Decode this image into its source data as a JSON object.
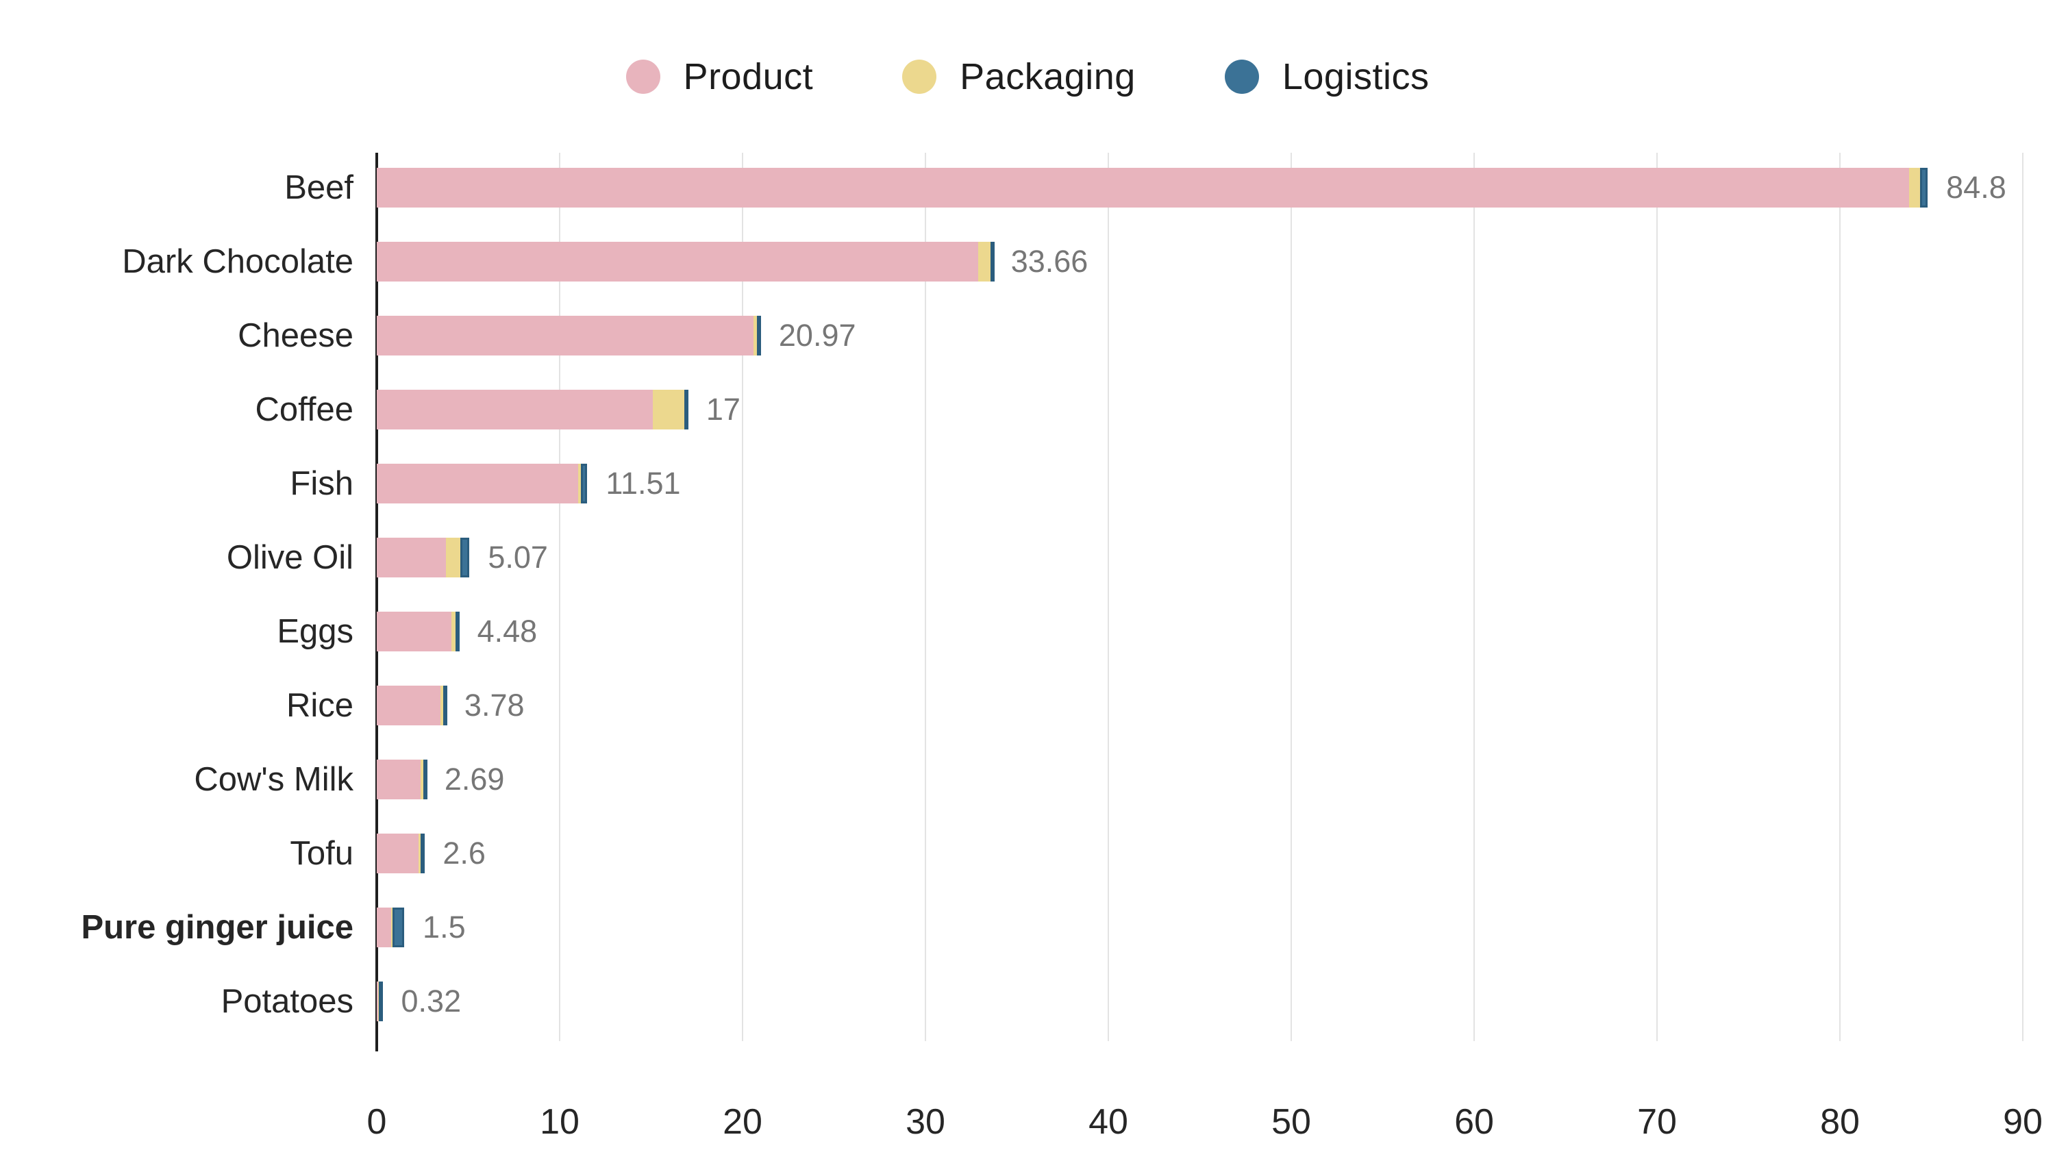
{
  "legend": {
    "items": [
      {
        "label": "Product",
        "color": "#e8b4bd"
      },
      {
        "label": "Packaging",
        "color": "#ecd88e"
      },
      {
        "label": "Logistics",
        "color": "#3b7296"
      }
    ]
  },
  "chart_data": {
    "type": "bar",
    "orientation": "horizontal",
    "stacked": true,
    "title": "",
    "xlabel": "",
    "ylabel": "",
    "grid": true,
    "legend_position": "top-center",
    "xlim": [
      0,
      90
    ],
    "x_ticks": [
      0,
      10,
      20,
      30,
      40,
      50,
      60,
      70,
      80,
      90
    ],
    "categories": [
      "Beef",
      "Dark Chocolate",
      "Cheese",
      "Coffee",
      "Fish",
      "Olive Oil",
      "Eggs",
      "Rice",
      "Cow's Milk",
      "Tofu",
      "Pure ginger juice",
      "Potatoes"
    ],
    "bold_categories": [
      "Pure ginger juice"
    ],
    "series": [
      {
        "name": "Product",
        "color": "#e8b4bd",
        "values": [
          83.8,
          32.9,
          20.6,
          15.1,
          11.0,
          3.8,
          4.1,
          3.5,
          2.4,
          2.3,
          0.8,
          0.06
        ]
      },
      {
        "name": "Packaging",
        "color": "#ecd88e",
        "values": [
          0.6,
          0.66,
          0.2,
          1.7,
          0.17,
          0.78,
          0.22,
          0.13,
          0.14,
          0.1,
          0.05,
          0.04
        ]
      },
      {
        "name": "Logistics",
        "color": "#3b7296",
        "values": [
          0.4,
          0.1,
          0.17,
          0.2,
          0.34,
          0.49,
          0.16,
          0.15,
          0.15,
          0.2,
          0.65,
          0.22
        ]
      }
    ],
    "totals": [
      84.8,
      33.66,
      20.97,
      17,
      11.51,
      5.07,
      4.48,
      3.78,
      2.69,
      2.6,
      1.5,
      0.32
    ],
    "total_labels": [
      "84.8",
      "33.66",
      "20.97",
      "17",
      "11.51",
      "5.07",
      "4.48",
      "3.78",
      "2.69",
      "2.6",
      "1.5",
      "0.32"
    ],
    "colors": {
      "axis_line": "#1f1f1f",
      "gridline": "#e3e3e3",
      "category_text": "#262626",
      "tick_text": "#262626",
      "value_text": "#767676",
      "logistics_border": "#2b5d7e"
    }
  }
}
